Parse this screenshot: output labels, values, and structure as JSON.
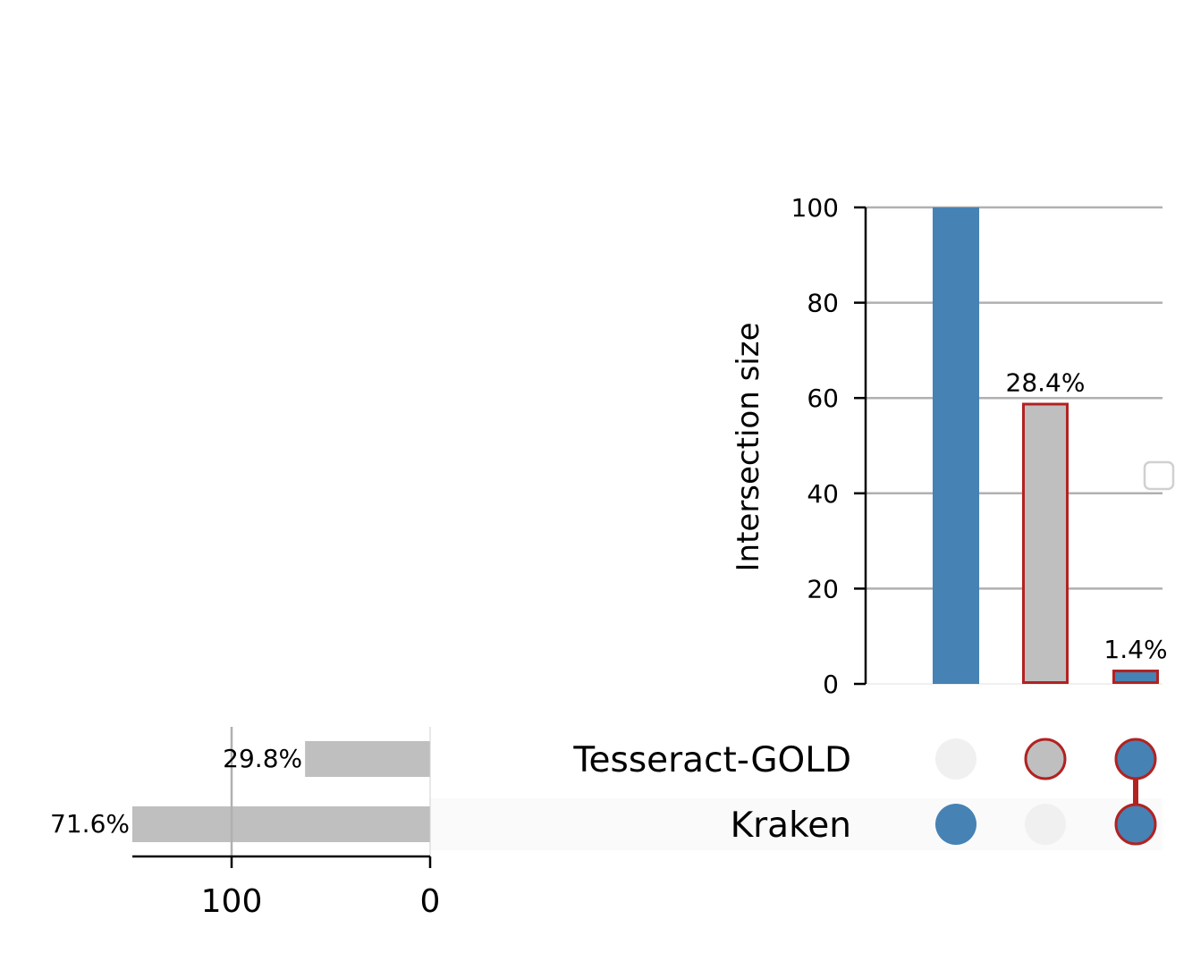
{
  "chart_data": {
    "type": "upset",
    "intersections": {
      "ylabel": "Intersection size",
      "ylim": [
        0,
        100
      ],
      "yticks": [
        0,
        20,
        40,
        60,
        80,
        100
      ],
      "bars": [
        {
          "sets": [
            "Kraken"
          ],
          "value": 100,
          "label": "",
          "highlight": false,
          "color": "#4682b4"
        },
        {
          "sets": [
            "Tesseract-GOLD"
          ],
          "value": 59,
          "label": "28.4%",
          "highlight": true,
          "color": "#bfbfbf"
        },
        {
          "sets": [
            "Tesseract-GOLD",
            "Kraken"
          ],
          "value": 3,
          "label": "1.4%",
          "highlight": true,
          "color": "#4682b4"
        }
      ]
    },
    "sets": {
      "names": [
        "Tesseract-GOLD",
        "Kraken"
      ],
      "values": [
        63,
        150
      ],
      "labels": [
        "29.8%",
        "71.6%"
      ],
      "xticks": [
        100,
        0
      ],
      "xlim": [
        150,
        0
      ]
    },
    "grid": true,
    "legend": "right",
    "colors": {
      "primary": "#4682b4",
      "highlight_fill": "#bfbfbf",
      "highlight_edge": "#b22222",
      "inactive_dot": "#f0f0f0",
      "grid": "#b0b0b0",
      "set_bar": "#bfbfbf"
    }
  }
}
